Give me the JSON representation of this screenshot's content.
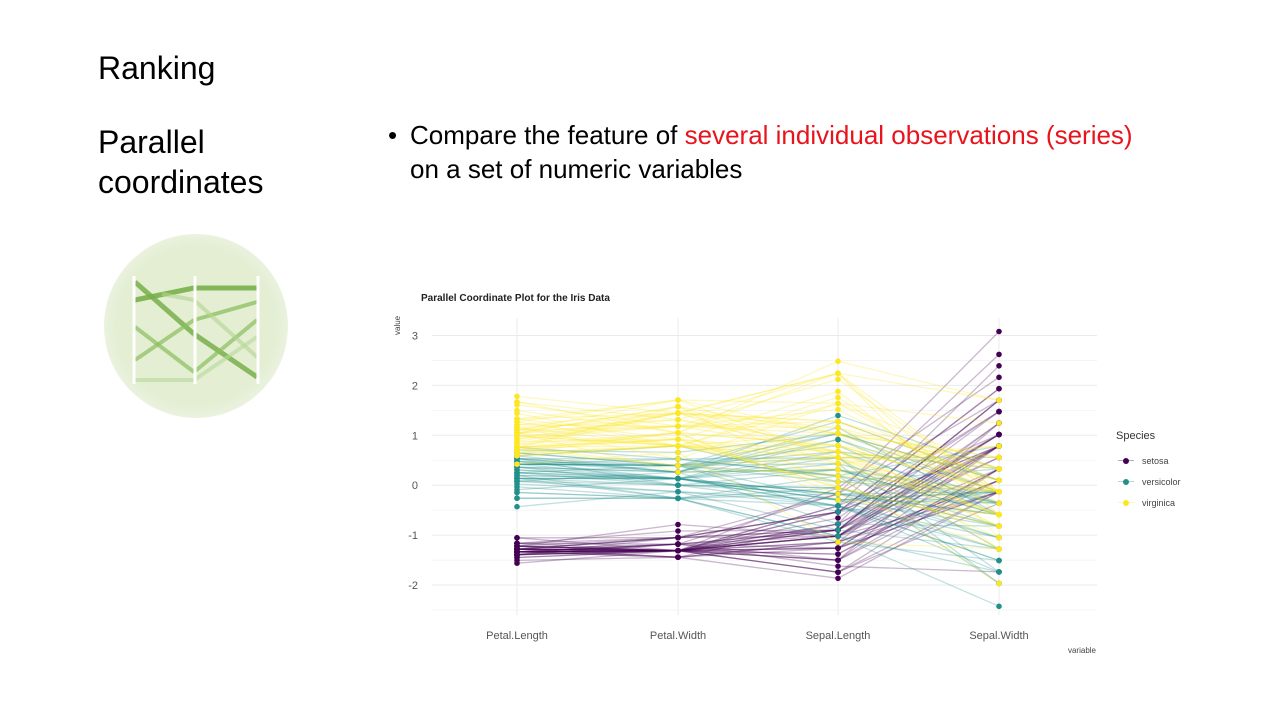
{
  "slide": {
    "title": "Ranking",
    "section_title": "Parallel coordinates",
    "bullet": {
      "marker": "•",
      "text_before": "Compare the feature of ",
      "highlight": "several individual observations (series)",
      "text_after": " on a set of numeric variables",
      "highlight_color": "#e8141c"
    },
    "thumbnail_icon": "parallel-coordinates-icon"
  },
  "chart_data": {
    "type": "line",
    "subtype": "parallel-coordinates",
    "title": "Parallel Coordinate Plot for the Iris Data",
    "xlabel": "variable",
    "ylabel": "value",
    "categories": [
      "Petal.Length",
      "Petal.Width",
      "Sepal.Length",
      "Sepal.Width"
    ],
    "ylim": [
      -2.6,
      3.35
    ],
    "yticks": [
      3,
      2,
      1,
      0,
      -1,
      -2
    ],
    "ytick_labels": [
      "3",
      "2",
      "1",
      "0",
      "-1",
      "-2"
    ],
    "scaling": "standardized",
    "grid": true,
    "legend": {
      "title": "Species",
      "position": "right",
      "entries": [
        {
          "name": "setosa",
          "color": "#440154"
        },
        {
          "name": "versicolor",
          "color": "#21908c"
        },
        {
          "name": "virginica",
          "color": "#fde725"
        }
      ]
    },
    "raw_columns": [
      "Sepal.Length",
      "Sepal.Width",
      "Petal.Length",
      "Petal.Width"
    ],
    "series": [
      {
        "name": "setosa",
        "observations": [
          [
            5.1,
            3.5,
            1.4,
            0.2
          ],
          [
            4.9,
            3.0,
            1.4,
            0.2
          ],
          [
            4.7,
            3.2,
            1.3,
            0.2
          ],
          [
            4.6,
            3.1,
            1.5,
            0.2
          ],
          [
            5.0,
            3.6,
            1.4,
            0.2
          ],
          [
            5.4,
            3.9,
            1.7,
            0.4
          ],
          [
            4.6,
            3.4,
            1.4,
            0.3
          ],
          [
            5.0,
            3.4,
            1.5,
            0.2
          ],
          [
            4.4,
            2.9,
            1.4,
            0.2
          ],
          [
            4.9,
            3.1,
            1.5,
            0.1
          ],
          [
            5.4,
            3.7,
            1.5,
            0.2
          ],
          [
            4.8,
            3.4,
            1.6,
            0.2
          ],
          [
            4.8,
            3.0,
            1.4,
            0.1
          ],
          [
            4.3,
            3.0,
            1.1,
            0.1
          ],
          [
            5.8,
            4.0,
            1.2,
            0.2
          ],
          [
            5.7,
            4.4,
            1.5,
            0.4
          ],
          [
            5.4,
            3.9,
            1.3,
            0.4
          ],
          [
            5.1,
            3.5,
            1.4,
            0.3
          ],
          [
            5.7,
            3.8,
            1.7,
            0.3
          ],
          [
            5.1,
            3.8,
            1.5,
            0.3
          ],
          [
            5.4,
            3.4,
            1.7,
            0.2
          ],
          [
            5.1,
            3.7,
            1.5,
            0.4
          ],
          [
            4.6,
            3.6,
            1.0,
            0.2
          ],
          [
            5.1,
            3.3,
            1.7,
            0.5
          ],
          [
            4.8,
            3.4,
            1.9,
            0.2
          ],
          [
            5.0,
            3.0,
            1.6,
            0.2
          ],
          [
            5.0,
            3.4,
            1.6,
            0.4
          ],
          [
            5.2,
            3.5,
            1.5,
            0.2
          ],
          [
            5.2,
            3.4,
            1.4,
            0.2
          ],
          [
            4.7,
            3.2,
            1.6,
            0.2
          ],
          [
            4.8,
            3.1,
            1.6,
            0.2
          ],
          [
            5.4,
            3.4,
            1.5,
            0.4
          ],
          [
            5.2,
            4.1,
            1.5,
            0.1
          ],
          [
            5.5,
            4.2,
            1.4,
            0.2
          ],
          [
            4.9,
            3.1,
            1.5,
            0.2
          ],
          [
            5.0,
            3.2,
            1.2,
            0.2
          ],
          [
            5.5,
            3.5,
            1.3,
            0.2
          ],
          [
            4.9,
            3.6,
            1.4,
            0.1
          ],
          [
            4.4,
            3.0,
            1.3,
            0.2
          ],
          [
            5.1,
            3.4,
            1.5,
            0.2
          ],
          [
            5.0,
            3.5,
            1.3,
            0.3
          ],
          [
            4.5,
            2.3,
            1.3,
            0.3
          ],
          [
            4.4,
            3.2,
            1.3,
            0.2
          ],
          [
            5.0,
            3.5,
            1.6,
            0.6
          ],
          [
            5.1,
            3.8,
            1.9,
            0.4
          ],
          [
            4.8,
            3.0,
            1.4,
            0.3
          ],
          [
            5.1,
            3.8,
            1.6,
            0.2
          ],
          [
            4.6,
            3.2,
            1.4,
            0.2
          ],
          [
            5.3,
            3.7,
            1.5,
            0.2
          ],
          [
            5.0,
            3.3,
            1.4,
            0.2
          ]
        ]
      },
      {
        "name": "versicolor",
        "observations": [
          [
            7.0,
            3.2,
            4.7,
            1.4
          ],
          [
            6.4,
            3.2,
            4.5,
            1.5
          ],
          [
            6.9,
            3.1,
            4.9,
            1.5
          ],
          [
            5.5,
            2.3,
            4.0,
            1.3
          ],
          [
            6.5,
            2.8,
            4.6,
            1.5
          ],
          [
            5.7,
            2.8,
            4.5,
            1.3
          ],
          [
            6.3,
            3.3,
            4.7,
            1.6
          ],
          [
            4.9,
            2.4,
            3.3,
            1.0
          ],
          [
            6.6,
            2.9,
            4.6,
            1.3
          ],
          [
            5.2,
            2.7,
            3.9,
            1.4
          ],
          [
            5.0,
            2.0,
            3.5,
            1.0
          ],
          [
            5.9,
            3.0,
            4.2,
            1.5
          ],
          [
            6.0,
            2.2,
            4.0,
            1.0
          ],
          [
            6.1,
            2.9,
            4.7,
            1.4
          ],
          [
            5.6,
            2.9,
            3.6,
            1.3
          ],
          [
            6.7,
            3.1,
            4.4,
            1.4
          ],
          [
            5.6,
            3.0,
            4.5,
            1.5
          ],
          [
            5.8,
            2.7,
            4.1,
            1.0
          ],
          [
            6.2,
            2.2,
            4.5,
            1.5
          ],
          [
            5.6,
            2.5,
            3.9,
            1.1
          ],
          [
            5.9,
            3.2,
            4.8,
            1.8
          ],
          [
            6.1,
            2.8,
            4.0,
            1.3
          ],
          [
            6.3,
            2.5,
            4.9,
            1.5
          ],
          [
            6.1,
            2.8,
            4.7,
            1.2
          ],
          [
            6.4,
            2.9,
            4.3,
            1.3
          ],
          [
            6.6,
            3.0,
            4.4,
            1.4
          ],
          [
            6.8,
            2.8,
            4.8,
            1.4
          ],
          [
            6.7,
            3.0,
            5.0,
            1.7
          ],
          [
            6.0,
            2.9,
            4.5,
            1.5
          ],
          [
            5.7,
            2.6,
            3.5,
            1.0
          ],
          [
            5.5,
            2.4,
            3.8,
            1.1
          ],
          [
            5.5,
            2.4,
            3.7,
            1.0
          ],
          [
            5.8,
            2.7,
            3.9,
            1.2
          ],
          [
            6.0,
            2.7,
            5.1,
            1.6
          ],
          [
            5.4,
            3.0,
            4.5,
            1.5
          ],
          [
            6.0,
            3.4,
            4.5,
            1.6
          ],
          [
            6.7,
            3.1,
            4.7,
            1.5
          ],
          [
            6.3,
            2.3,
            4.4,
            1.3
          ],
          [
            5.6,
            3.0,
            4.1,
            1.3
          ],
          [
            5.5,
            2.5,
            4.0,
            1.3
          ],
          [
            5.5,
            2.6,
            4.4,
            1.2
          ],
          [
            6.1,
            3.0,
            4.6,
            1.4
          ],
          [
            5.8,
            2.6,
            4.0,
            1.2
          ],
          [
            5.0,
            2.3,
            3.3,
            1.0
          ],
          [
            5.6,
            2.7,
            4.2,
            1.3
          ],
          [
            5.7,
            3.0,
            4.2,
            1.2
          ],
          [
            5.7,
            2.9,
            4.2,
            1.3
          ],
          [
            6.2,
            2.9,
            4.3,
            1.3
          ],
          [
            5.1,
            2.5,
            3.0,
            1.1
          ],
          [
            5.7,
            2.8,
            4.1,
            1.3
          ]
        ]
      },
      {
        "name": "virginica",
        "observations": [
          [
            6.3,
            3.3,
            6.0,
            2.5
          ],
          [
            5.8,
            2.7,
            5.1,
            1.9
          ],
          [
            7.1,
            3.0,
            5.9,
            2.1
          ],
          [
            6.3,
            2.9,
            5.6,
            1.8
          ],
          [
            6.5,
            3.0,
            5.8,
            2.2
          ],
          [
            7.6,
            3.0,
            6.6,
            2.1
          ],
          [
            4.9,
            2.5,
            4.5,
            1.7
          ],
          [
            7.3,
            2.9,
            6.3,
            1.8
          ],
          [
            6.7,
            2.5,
            5.8,
            1.8
          ],
          [
            7.2,
            3.6,
            6.1,
            2.5
          ],
          [
            6.5,
            3.2,
            5.1,
            2.0
          ],
          [
            6.4,
            2.7,
            5.3,
            1.9
          ],
          [
            6.8,
            3.0,
            5.5,
            2.1
          ],
          [
            5.7,
            2.5,
            5.0,
            2.0
          ],
          [
            5.8,
            2.8,
            5.1,
            2.4
          ],
          [
            6.4,
            3.2,
            5.3,
            2.3
          ],
          [
            6.5,
            3.0,
            5.5,
            1.8
          ],
          [
            7.7,
            3.8,
            6.7,
            2.2
          ],
          [
            7.7,
            2.6,
            6.9,
            2.3
          ],
          [
            6.0,
            2.2,
            5.0,
            1.5
          ],
          [
            6.9,
            3.2,
            5.7,
            2.3
          ],
          [
            5.6,
            2.8,
            4.9,
            2.0
          ],
          [
            7.7,
            2.8,
            6.7,
            2.0
          ],
          [
            6.3,
            2.7,
            4.9,
            1.8
          ],
          [
            6.7,
            3.3,
            5.7,
            2.1
          ],
          [
            7.2,
            3.2,
            6.0,
            1.8
          ],
          [
            6.2,
            2.8,
            4.8,
            1.8
          ],
          [
            6.1,
            3.0,
            4.9,
            1.8
          ],
          [
            6.4,
            2.8,
            5.6,
            2.1
          ],
          [
            7.2,
            3.0,
            5.8,
            1.6
          ],
          [
            7.4,
            2.8,
            6.1,
            1.9
          ],
          [
            7.9,
            3.8,
            6.4,
            2.0
          ],
          [
            6.4,
            2.8,
            5.6,
            2.2
          ],
          [
            6.3,
            2.8,
            5.1,
            1.5
          ],
          [
            6.1,
            2.6,
            5.6,
            1.4
          ],
          [
            7.7,
            3.0,
            6.1,
            2.3
          ],
          [
            6.3,
            3.4,
            5.6,
            2.4
          ],
          [
            6.4,
            3.1,
            5.5,
            1.8
          ],
          [
            6.0,
            3.0,
            4.8,
            1.8
          ],
          [
            6.9,
            3.1,
            5.4,
            2.1
          ],
          [
            6.7,
            3.1,
            5.6,
            2.4
          ],
          [
            6.9,
            3.1,
            5.1,
            2.3
          ],
          [
            5.8,
            2.7,
            5.1,
            1.9
          ],
          [
            6.8,
            3.2,
            5.9,
            2.3
          ],
          [
            6.7,
            3.3,
            5.7,
            2.5
          ],
          [
            6.7,
            3.0,
            5.2,
            2.3
          ],
          [
            6.3,
            2.5,
            5.0,
            1.9
          ],
          [
            6.5,
            3.0,
            5.2,
            2.0
          ],
          [
            6.2,
            3.4,
            5.4,
            2.3
          ],
          [
            5.9,
            3.0,
            5.1,
            1.8
          ]
        ]
      }
    ]
  }
}
